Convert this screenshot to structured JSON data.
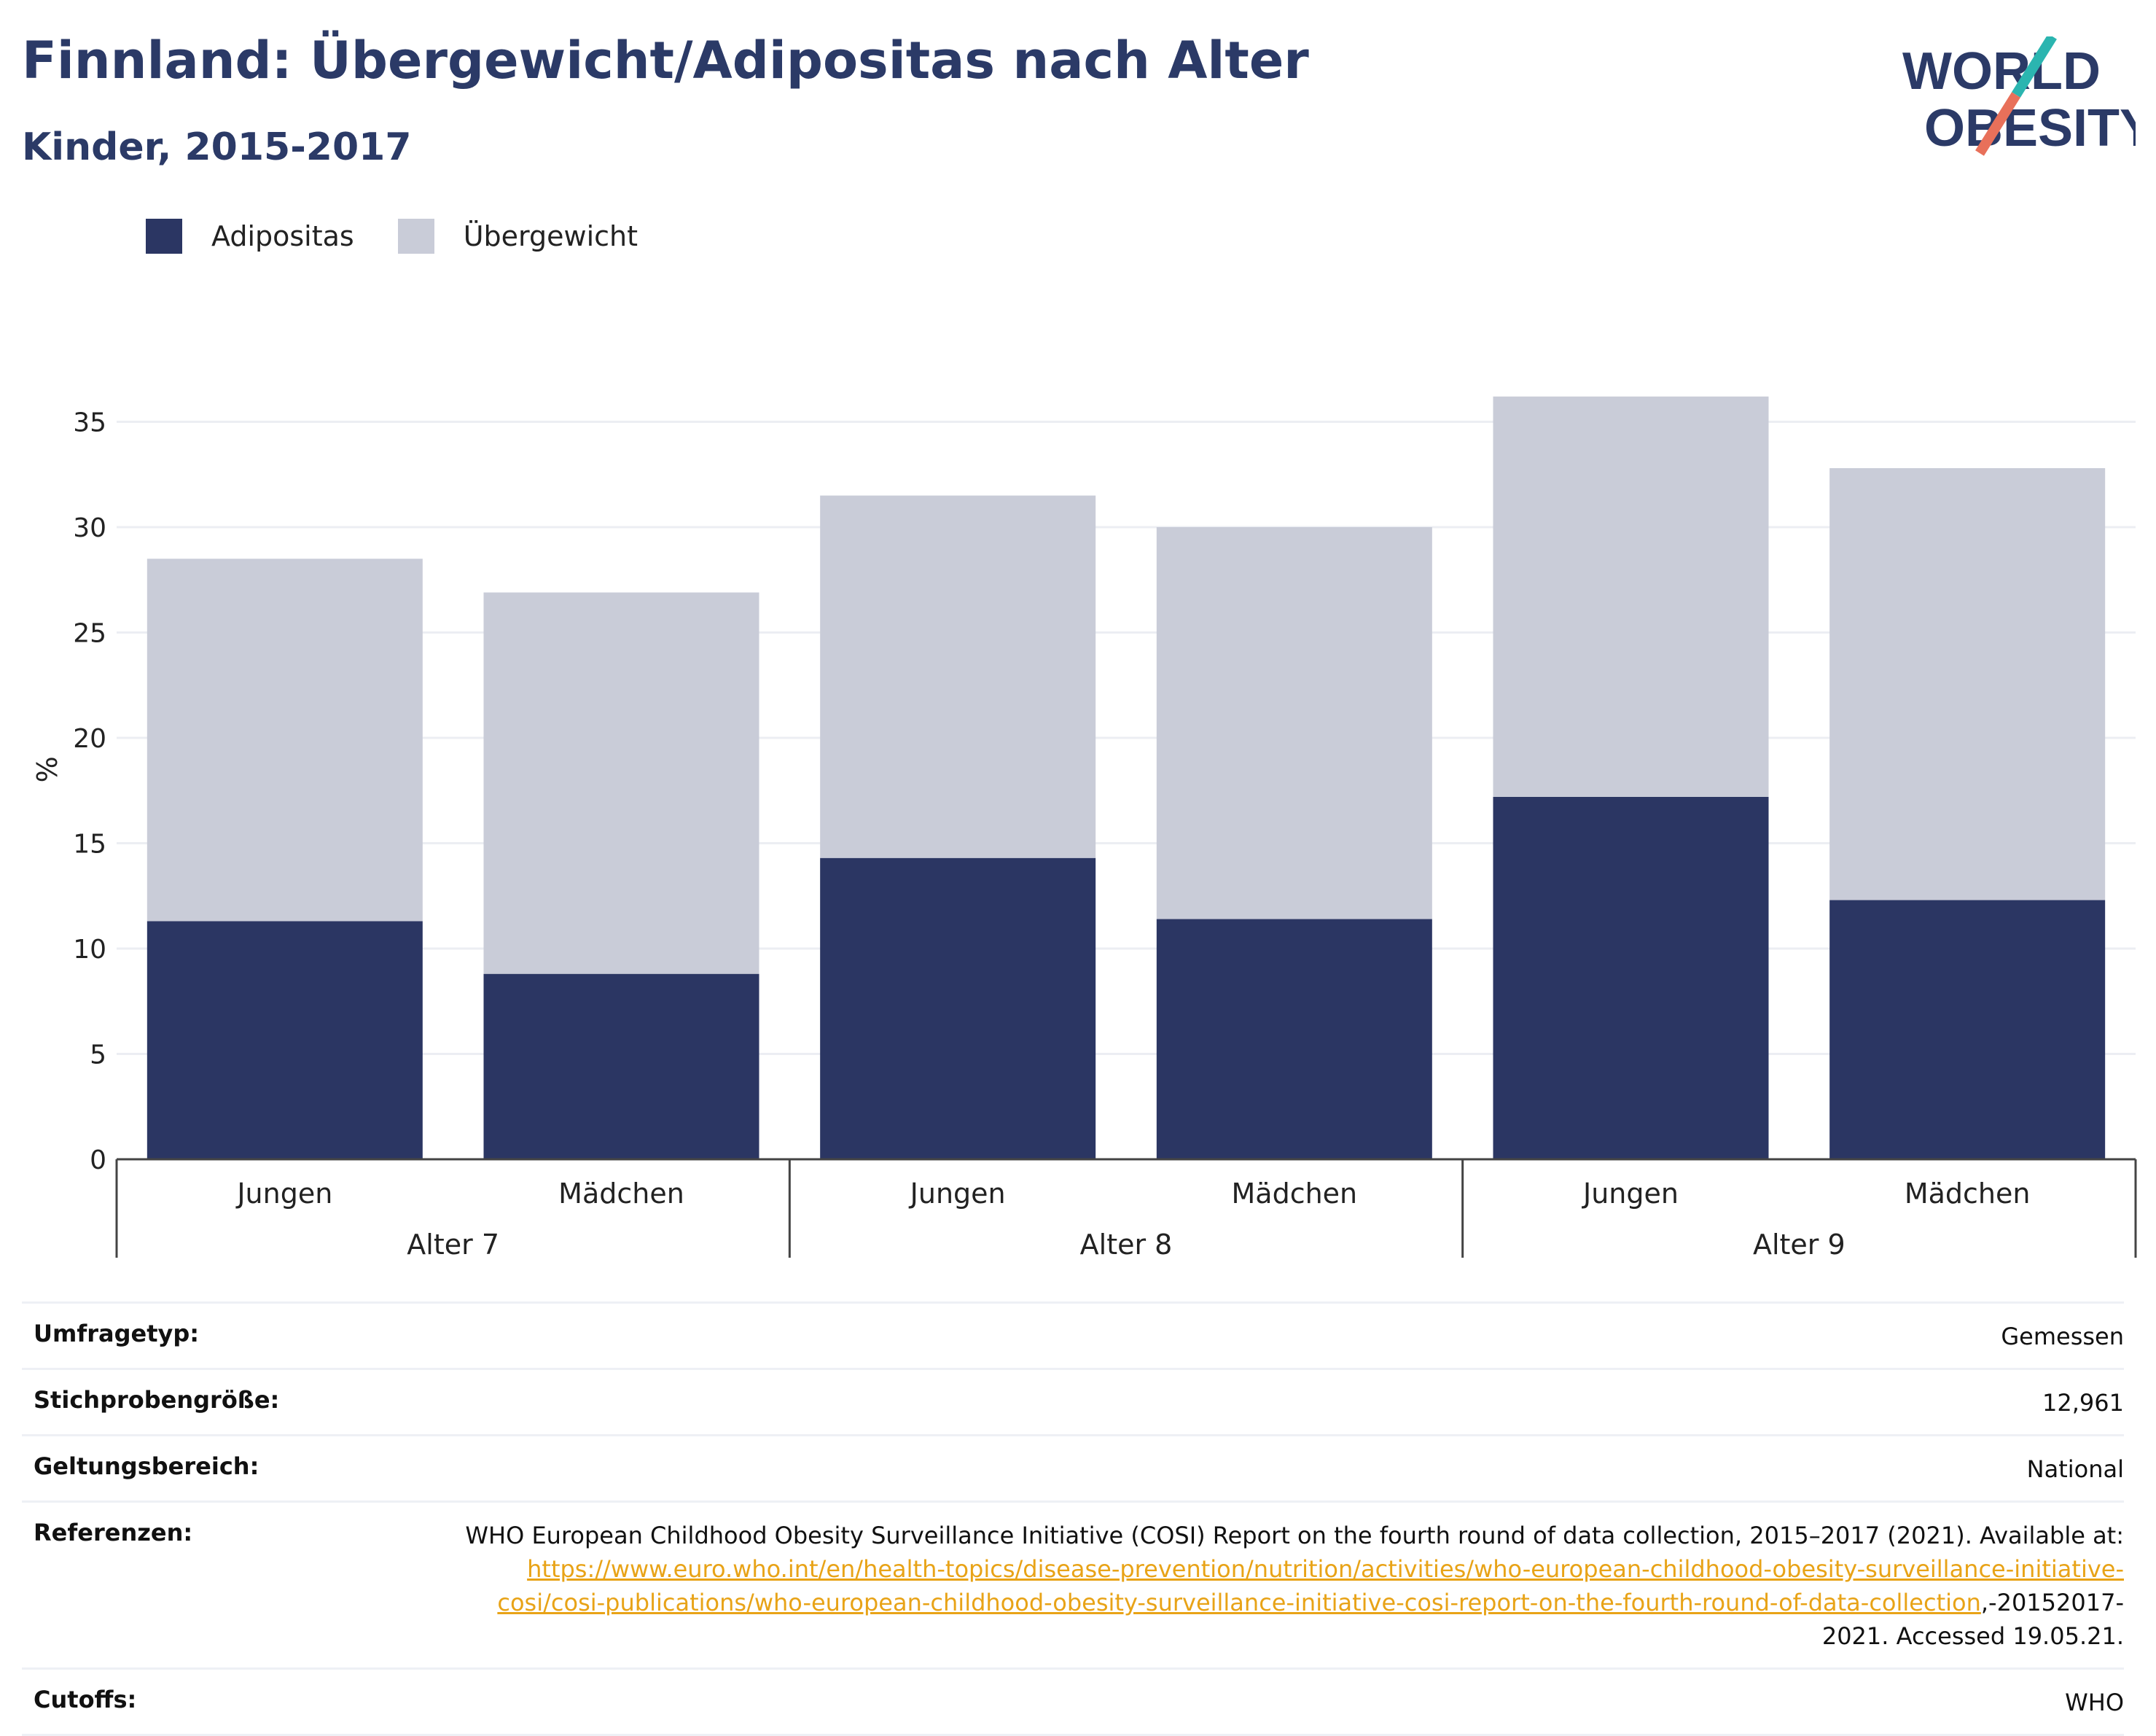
{
  "title": "Finnland: Übergewicht/Adipositas nach Alter",
  "subtitle": "Kinder, 2015-2017",
  "logo": {
    "line1": "WORLD",
    "line2": "OBESITY",
    "accent_teal": "#2bb5b0",
    "accent_red": "#e8705a"
  },
  "colors": {
    "dark": "#2b3663",
    "light": "#c9ccd8",
    "title": "#2b3a67",
    "link": "#e8a317"
  },
  "legend": [
    {
      "label": "Adipositas",
      "color": "#2b3663"
    },
    {
      "label": "Übergewicht",
      "color": "#c9ccd8"
    }
  ],
  "chart_data": {
    "type": "bar",
    "stacked": true,
    "ylabel": "%",
    "ylim": [
      0,
      37
    ],
    "yticks": [
      0,
      5,
      10,
      15,
      20,
      25,
      30,
      35
    ],
    "grid": true,
    "legend_position": "top-left",
    "groups": [
      "Alter 7",
      "Alter 8",
      "Alter 9"
    ],
    "categories": [
      "Jungen",
      "Mädchen",
      "Jungen",
      "Mädchen",
      "Jungen",
      "Mädchen"
    ],
    "category_group": [
      0,
      0,
      1,
      1,
      2,
      2
    ],
    "series": [
      {
        "name": "Adipositas",
        "values": [
          11.3,
          8.8,
          14.3,
          11.4,
          17.2,
          12.3
        ]
      },
      {
        "name": "Übergewicht",
        "values": [
          17.2,
          18.1,
          17.2,
          18.6,
          19.0,
          20.5
        ]
      }
    ]
  },
  "meta": [
    {
      "key": "Umfragetyp:",
      "value": "Gemessen"
    },
    {
      "key": "Stichprobengröße:",
      "value": "12,961"
    },
    {
      "key": "Geltungsbereich:",
      "value": "National"
    },
    {
      "key": "Referenzen:",
      "value_pre": "WHO European Childhood Obesity Surveillance Initiative (COSI) Report on the fourth round of data collection, 2015–2017 (2021). Available at: ",
      "link": "https://www.euro.who.int/en/health-topics/disease-prevention/nutrition/activities/who-european-childhood-obesity-surveillance-initiative-cosi/cosi-publications/who-european-childhood-obesity-surveillance-initiative-cosi-report-on-the-fourth-round-of-data-collection",
      "value_post": ",-20152017-2021. Accessed 19.05.21."
    },
    {
      "key": "Cutoffs:",
      "value": "WHO"
    }
  ]
}
